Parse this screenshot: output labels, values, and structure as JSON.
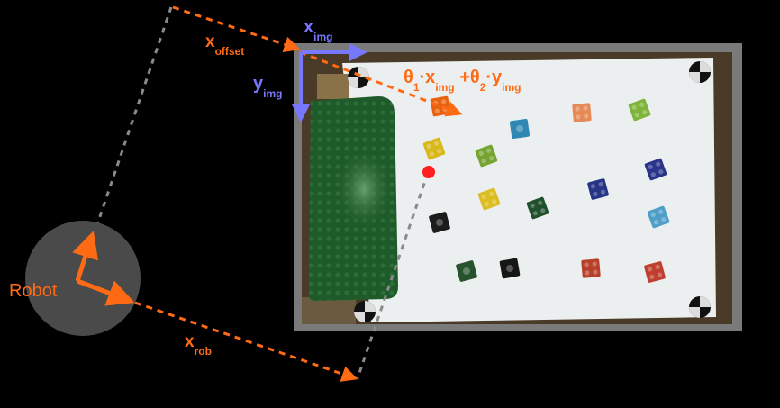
{
  "colors": {
    "background": "#000000",
    "accent": "#ff6a14",
    "image_axis": "#7777ff",
    "dashed_gray": "#8a8a8a",
    "robot_body": "#4a4a4a",
    "target_point": "#ff2020",
    "frame": "#7a7a7a",
    "paper": "#eceff0",
    "baseplate": "#1f5a2a"
  },
  "labels": {
    "robot": "Robot",
    "x_offset": {
      "main": "x",
      "sub": "offset"
    },
    "x_rob": {
      "main": "x",
      "sub": "rob"
    },
    "x_img": {
      "main": "x",
      "sub": "img"
    },
    "y_img": {
      "main": "y",
      "sub": "img"
    },
    "formula": {
      "t1": "θ",
      "s1": "1",
      "t2": "·x",
      "s2": "img",
      "t3": " +θ",
      "s3": "2",
      "t4": "·y",
      "s4": "img"
    }
  },
  "icons": {
    "robot": "robot-base-circle",
    "camera_image": "camera-view-of-lego-bricks",
    "markers": "calibration-marker-icon"
  },
  "bricks": [
    {
      "color": "#e8620e",
      "type": "2x2"
    },
    {
      "color": "#d9b81c",
      "type": "2x2"
    },
    {
      "color": "#2f88b4",
      "type": "1x1"
    },
    {
      "color": "#e58a55",
      "type": "2x2"
    },
    {
      "color": "#7fb43a",
      "type": "2x2"
    },
    {
      "color": "#76a432",
      "type": "2x2"
    },
    {
      "color": "#dcbd22",
      "type": "2x2"
    },
    {
      "color": "#1c1c1c",
      "type": "1x1"
    },
    {
      "color": "#20502c",
      "type": "2x2"
    },
    {
      "color": "#263486",
      "type": "2x2"
    },
    {
      "color": "#2a348a",
      "type": "2x2"
    },
    {
      "color": "#4e9ec8",
      "type": "2x2"
    },
    {
      "color": "#26522c",
      "type": "1x1"
    },
    {
      "color": "#161616",
      "type": "1x1"
    },
    {
      "color": "#b8402a",
      "type": "2x2"
    },
    {
      "color": "#c04030",
      "type": "2x2"
    }
  ]
}
